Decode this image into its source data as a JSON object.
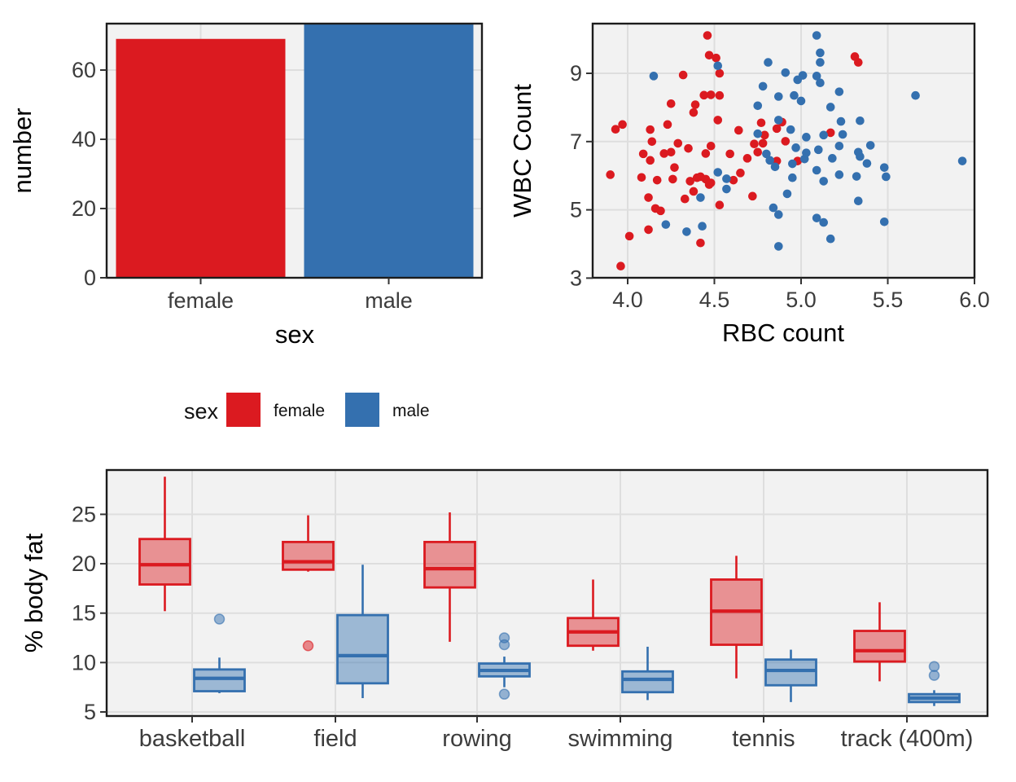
{
  "colors": {
    "female": "#db1a20",
    "male": "#3470af",
    "panel_bg": "#f2f2f2",
    "grid": "#dedede",
    "panel_border": "#1c1c1c",
    "tick_text": "#3c3c3c",
    "tick_mark": "#333333"
  },
  "legend": {
    "title": "sex",
    "items": [
      {
        "label": "female",
        "color": "#db1a20"
      },
      {
        "label": "male",
        "color": "#3470af"
      }
    ]
  },
  "chart_data": [
    {
      "type": "bar",
      "title": "",
      "xlabel": "sex",
      "ylabel": "number",
      "categories": [
        "female",
        "male"
      ],
      "values": [
        69,
        74
      ],
      "series_colors": [
        "#db1a20",
        "#3470af"
      ],
      "yticks": [
        0,
        20,
        40,
        60
      ],
      "ylim": [
        0,
        73.2
      ],
      "grid": true,
      "legend_position": "none"
    },
    {
      "type": "scatter",
      "title": "",
      "xlabel": "RBC count",
      "ylabel": "WBC Count",
      "xticks": [
        "4.0",
        "4.5",
        "5.0",
        "5.5",
        "6.0"
      ],
      "xtick_values": [
        4.0,
        4.5,
        5.0,
        5.5,
        6.0
      ],
      "yticks": [
        9,
        7,
        5,
        3
      ],
      "xlim": [
        3.8,
        6.02
      ],
      "ylim": [
        2.99,
        10.46
      ],
      "grid": true,
      "legend_position": "bottom-shared",
      "series": [
        {
          "name": "female",
          "color": "#db1a20",
          "points": [
            [
              4.46,
              10.11
            ],
            [
              4.47,
              9.53
            ],
            [
              4.51,
              9.45
            ],
            [
              4.53,
              9.0
            ],
            [
              4.32,
              8.95
            ],
            [
              4.44,
              8.36
            ],
            [
              4.48,
              8.37
            ],
            [
              4.53,
              8.35
            ],
            [
              4.39,
              8.08
            ],
            [
              4.38,
              7.85
            ],
            [
              4.25,
              8.11
            ],
            [
              4.52,
              7.63
            ],
            [
              4.77,
              7.55
            ],
            [
              4.23,
              7.5
            ],
            [
              3.97,
              7.5
            ],
            [
              3.93,
              7.36
            ],
            [
              4.13,
              7.35
            ],
            [
              4.64,
              7.33
            ],
            [
              4.79,
              7.19
            ],
            [
              4.14,
              7.0
            ],
            [
              4.29,
              6.95
            ],
            [
              4.35,
              6.8
            ],
            [
              4.73,
              6.93
            ],
            [
              4.78,
              6.95
            ],
            [
              4.48,
              6.87
            ],
            [
              4.09,
              6.64
            ],
            [
              4.13,
              6.45
            ],
            [
              4.21,
              6.65
            ],
            [
              4.25,
              6.69
            ],
            [
              4.45,
              6.65
            ],
            [
              4.59,
              6.64
            ],
            [
              4.69,
              6.51
            ],
            [
              4.75,
              6.69
            ],
            [
              3.9,
              6.03
            ],
            [
              4.08,
              5.95
            ],
            [
              4.17,
              5.87
            ],
            [
              4.26,
              5.9
            ],
            [
              4.27,
              6.24
            ],
            [
              4.33,
              5.32
            ],
            [
              4.36,
              5.84
            ],
            [
              4.38,
              5.54
            ],
            [
              4.4,
              5.94
            ],
            [
              4.42,
              5.97
            ],
            [
              4.45,
              5.9
            ],
            [
              4.47,
              5.74
            ],
            [
              4.48,
              5.79
            ],
            [
              4.61,
              5.87
            ],
            [
              4.65,
              6.08
            ],
            [
              4.12,
              5.36
            ],
            [
              4.16,
              5.04
            ],
            [
              4.19,
              4.97
            ],
            [
              4.53,
              5.14
            ],
            [
              4.72,
              5.4
            ],
            [
              4.12,
              4.42
            ],
            [
              4.01,
              4.23
            ],
            [
              4.42,
              4.03
            ],
            [
              3.96,
              3.35
            ],
            [
              5.31,
              9.49
            ],
            [
              5.33,
              9.32
            ],
            [
              4.89,
              7.57
            ],
            [
              4.86,
              7.38
            ],
            [
              5.17,
              7.26
            ],
            [
              4.91,
              7.01
            ],
            [
              4.86,
              6.43
            ],
            [
              4.98,
              6.43
            ]
          ]
        },
        {
          "name": "male",
          "color": "#3470af",
          "points": [
            [
              4.15,
              8.92
            ],
            [
              4.52,
              9.22
            ],
            [
              4.81,
              9.32
            ],
            [
              4.78,
              8.62
            ],
            [
              4.87,
              8.32
            ],
            [
              4.75,
              8.05
            ],
            [
              4.87,
              7.63
            ],
            [
              4.75,
              7.23
            ],
            [
              4.42,
              5.36
            ],
            [
              4.52,
              6.1
            ],
            [
              4.57,
              5.91
            ],
            [
              4.57,
              5.61
            ],
            [
              4.8,
              6.64
            ],
            [
              4.82,
              6.45
            ],
            [
              4.85,
              6.26
            ],
            [
              4.84,
              5.06
            ],
            [
              4.87,
              4.86
            ],
            [
              4.22,
              4.57
            ],
            [
              4.34,
              4.36
            ],
            [
              4.43,
              4.52
            ],
            [
              4.87,
              3.93
            ],
            [
              5.09,
              10.11
            ],
            [
              5.11,
              9.6
            ],
            [
              5.11,
              9.32
            ],
            [
              4.91,
              9.02
            ],
            [
              4.98,
              8.81
            ],
            [
              5.01,
              8.94
            ],
            [
              5.09,
              8.92
            ],
            [
              5.11,
              8.72
            ],
            [
              4.96,
              8.35
            ],
            [
              5.0,
              8.19
            ],
            [
              5.22,
              8.46
            ],
            [
              5.17,
              8.01
            ],
            [
              5.66,
              8.35
            ],
            [
              5.34,
              7.61
            ],
            [
              5.23,
              7.59
            ],
            [
              4.94,
              7.35
            ],
            [
              5.13,
              7.19
            ],
            [
              5.03,
              7.13
            ],
            [
              5.24,
              7.21
            ],
            [
              5.22,
              6.87
            ],
            [
              5.4,
              6.89
            ],
            [
              5.1,
              6.76
            ],
            [
              4.97,
              6.82
            ],
            [
              4.95,
              6.35
            ],
            [
              5.02,
              6.49
            ],
            [
              5.03,
              6.67
            ],
            [
              5.18,
              6.51
            ],
            [
              5.09,
              6.16
            ],
            [
              5.13,
              5.84
            ],
            [
              5.22,
              6.03
            ],
            [
              4.95,
              5.94
            ],
            [
              5.33,
              6.69
            ],
            [
              5.34,
              6.56
            ],
            [
              5.32,
              5.98
            ],
            [
              5.38,
              6.36
            ],
            [
              5.48,
              6.24
            ],
            [
              5.49,
              5.97
            ],
            [
              5.93,
              6.43
            ],
            [
              4.92,
              5.47
            ],
            [
              5.33,
              5.26
            ],
            [
              5.09,
              4.76
            ],
            [
              5.13,
              4.63
            ],
            [
              5.48,
              4.65
            ],
            [
              5.17,
              4.15
            ]
          ]
        }
      ]
    },
    {
      "type": "box",
      "title": "",
      "xlabel": "",
      "ylabel": "% body fat",
      "categories": [
        "basketball",
        "field",
        "rowing",
        "swimming",
        "tennis",
        "track (400m)"
      ],
      "yticks": [
        25,
        20,
        15,
        10,
        5
      ],
      "ylim": [
        4.4,
        29.5
      ],
      "grid": true,
      "series": [
        {
          "name": "female",
          "color": "#db1a20",
          "stats": [
            {
              "min": 15.2,
              "q1": 17.9,
              "median": 19.9,
              "q3": 22.5,
              "max": 28.8,
              "outliers": []
            },
            {
              "min": 19.2,
              "q1": 19.4,
              "median": 20.2,
              "q3": 22.2,
              "max": 24.9,
              "outliers": [
                11.7
              ]
            },
            {
              "min": 12.1,
              "q1": 17.6,
              "median": 19.5,
              "q3": 22.2,
              "max": 25.2,
              "outliers": []
            },
            {
              "min": 11.2,
              "q1": 11.7,
              "median": 13.1,
              "q3": 14.5,
              "max": 18.4,
              "outliers": []
            },
            {
              "min": 8.4,
              "q1": 11.8,
              "median": 15.2,
              "q3": 18.4,
              "max": 20.8,
              "outliers": []
            },
            {
              "min": 8.1,
              "q1": 10.1,
              "median": 11.2,
              "q3": 13.2,
              "max": 16.1,
              "outliers": []
            }
          ]
        },
        {
          "name": "male",
          "color": "#3470af",
          "stats": [
            {
              "min": 6.9,
              "q1": 7.1,
              "median": 8.4,
              "q3": 9.3,
              "max": 10.5,
              "outliers": [
                14.4
              ]
            },
            {
              "min": 6.4,
              "q1": 7.9,
              "median": 10.7,
              "q3": 14.8,
              "max": 19.9,
              "outliers": []
            },
            {
              "min": 7.5,
              "q1": 8.6,
              "median": 9.2,
              "q3": 9.9,
              "max": 10.6,
              "outliers": [
                12.5,
                11.8,
                6.8
              ]
            },
            {
              "min": 6.2,
              "q1": 7.0,
              "median": 8.3,
              "q3": 9.1,
              "max": 11.6,
              "outliers": []
            },
            {
              "min": 6.0,
              "q1": 7.7,
              "median": 9.2,
              "q3": 10.3,
              "max": 11.3,
              "outliers": []
            },
            {
              "min": 5.6,
              "q1": 6.0,
              "median": 6.4,
              "q3": 6.8,
              "max": 7.2,
              "outliers": [
                9.6,
                8.7
              ]
            }
          ]
        }
      ]
    }
  ]
}
